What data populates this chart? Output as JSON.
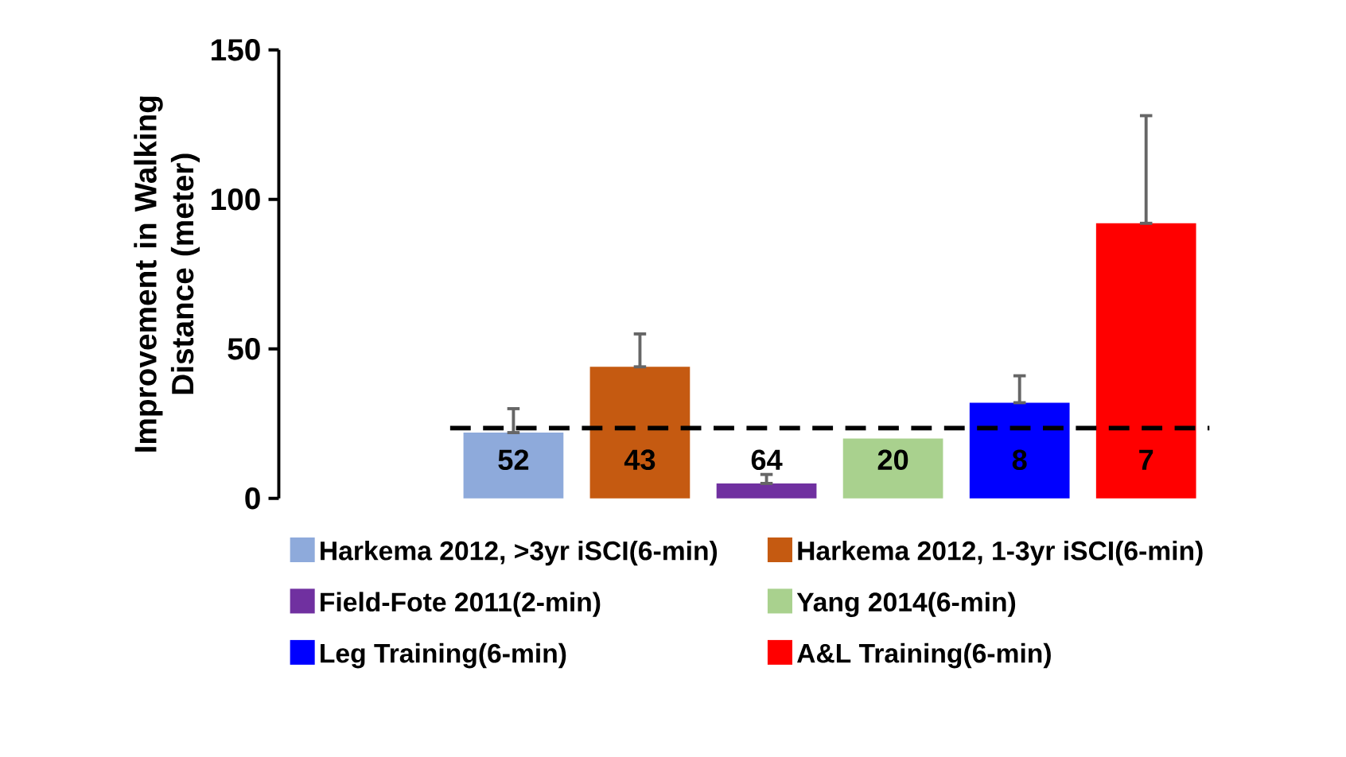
{
  "chart_data": {
    "type": "bar",
    "ylabel": "Improvement in Walking Distance (meter)",
    "categories": [
      null
    ],
    "ylim": [
      0,
      150
    ],
    "yticks": [
      0,
      50,
      100,
      150
    ],
    "legend": "bottom",
    "annotations": [
      "52",
      "43",
      "64",
      "20",
      "8",
      "7"
    ],
    "series": [
      {
        "name": "Harkema 2012, >3yr iSCI(6-min)",
        "color": "#8eaadb",
        "values": [
          22
        ],
        "errors": [
          [
            22,
            30
          ]
        ]
      },
      {
        "name": "Harkema 2012, 1-3yr iSCI(6-min)",
        "color": "#c55a11",
        "values": [
          44
        ],
        "errors": [
          [
            44,
            55
          ]
        ]
      },
      {
        "name": "Field-Fote 2011(2-min)",
        "color": "#7030a0",
        "values": [
          5
        ],
        "errors": [
          [
            5,
            8
          ]
        ]
      },
      {
        "name": "Yang 2014(6-min)",
        "color": "#a9d18e",
        "values": [
          20
        ]
      },
      {
        "name": "Leg Training(6-min)",
        "color": "#0000ff",
        "values": [
          32
        ],
        "errors": [
          [
            32,
            41
          ]
        ]
      },
      {
        "name": "A&L Training(6-min)",
        "color": "#ff0000",
        "values": [
          92
        ],
        "errors": [
          [
            92,
            128
          ]
        ]
      }
    ],
    "ref_lines": [
      {
        "axis": "y",
        "value": 23.5,
        "color": "#000000",
        "line_style": "dashed"
      }
    ]
  }
}
